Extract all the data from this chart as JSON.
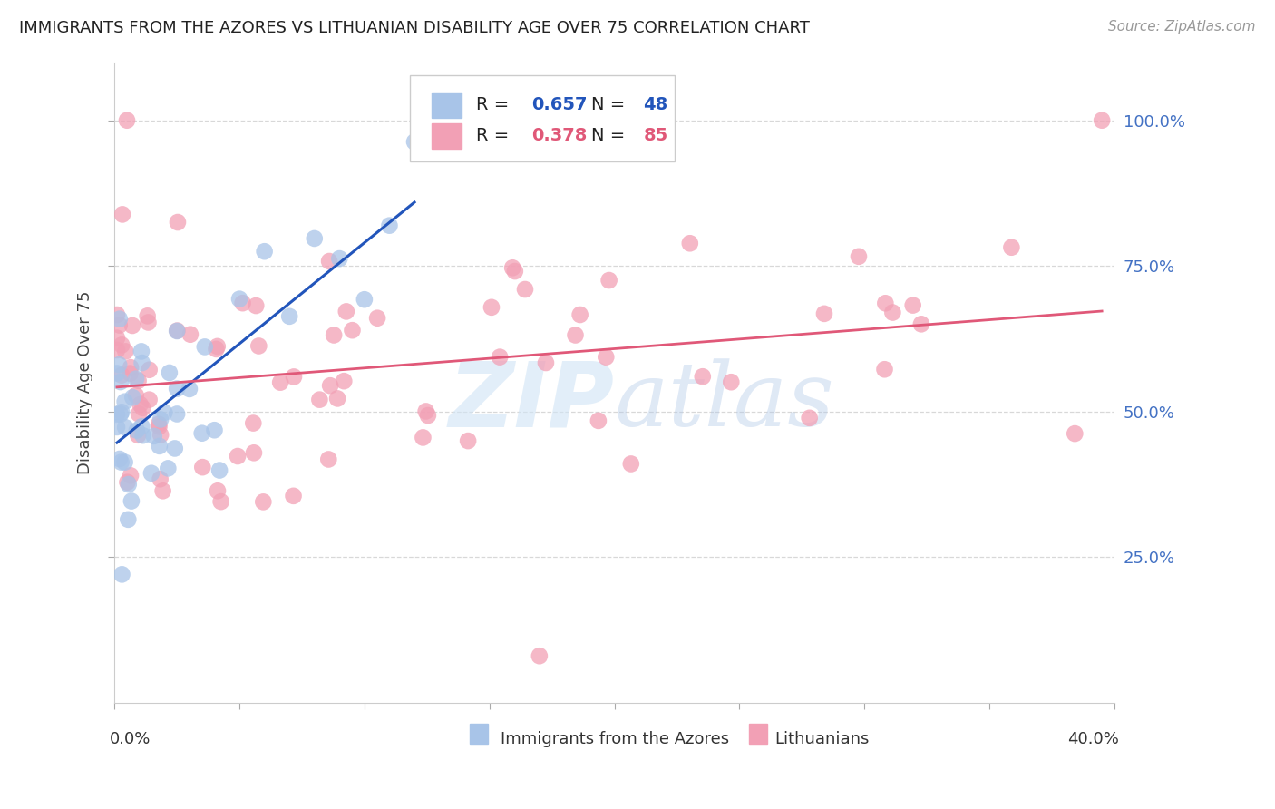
{
  "title": "IMMIGRANTS FROM THE AZORES VS LITHUANIAN DISABILITY AGE OVER 75 CORRELATION CHART",
  "source": "Source: ZipAtlas.com",
  "ylabel": "Disability Age Over 75",
  "legend_blue_R": "0.657",
  "legend_blue_N": "48",
  "legend_pink_R": "0.378",
  "legend_pink_N": "85",
  "legend_blue_label": "Immigrants from the Azores",
  "legend_pink_label": "Lithuanians",
  "blue_scatter_color": "#a8c4e8",
  "pink_scatter_color": "#f2a0b5",
  "blue_line_color": "#2255bb",
  "pink_line_color": "#e05878",
  "watermark_color": "#d0e4f5",
  "ytick_labels": [
    "25.0%",
    "50.0%",
    "75.0%",
    "100.0%"
  ],
  "ytick_values": [
    0.25,
    0.5,
    0.75,
    1.0
  ],
  "xlim": [
    0.0,
    0.4
  ],
  "ylim": [
    0.0,
    1.1
  ],
  "background_color": "#ffffff",
  "grid_color": "#d8d8d8",
  "right_tick_color": "#4472c4",
  "title_fontsize": 13,
  "source_fontsize": 11,
  "tick_label_fontsize": 13,
  "ylabel_fontsize": 13
}
